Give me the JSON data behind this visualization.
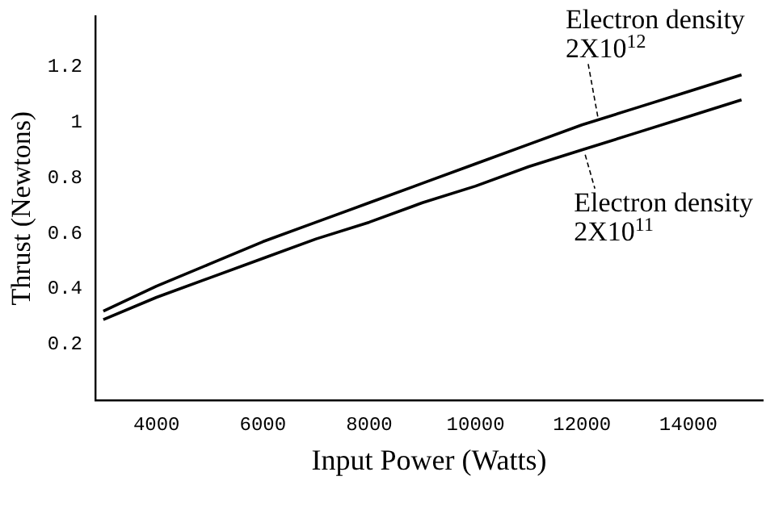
{
  "chart_data": {
    "type": "line",
    "xlabel": "Input Power (Watts)",
    "ylabel": "Thrust (Newtons)",
    "xlim": [
      2850,
      15400
    ],
    "xticks": [
      4000,
      6000,
      8000,
      10000,
      12000,
      14000
    ],
    "ylim": [
      0,
      1.38
    ],
    "yticks": [
      0.2,
      0.4,
      0.6,
      0.8,
      1,
      1.2
    ],
    "grid": false,
    "legend": false,
    "marker": "none",
    "line_style": "solid",
    "series": [
      {
        "color": "#000000",
        "x": [
          3000,
          4000,
          5000,
          6000,
          7000,
          8000,
          9000,
          10000,
          11000,
          12000,
          13000,
          14000,
          15000
        ],
        "values": [
          0.32,
          0.41,
          0.49,
          0.57,
          0.64,
          0.71,
          0.78,
          0.85,
          0.92,
          0.99,
          1.05,
          1.11,
          1.17
        ]
      },
      {
        "color": "#000000",
        "x": [
          3000,
          4000,
          5000,
          6000,
          7000,
          8000,
          9000,
          10000,
          11000,
          12000,
          13000,
          14000,
          15000
        ],
        "values": [
          0.29,
          0.37,
          0.44,
          0.51,
          0.58,
          0.64,
          0.71,
          0.77,
          0.84,
          0.9,
          0.96,
          1.02,
          1.08
        ]
      }
    ],
    "annotations": [
      {
        "text": "Electron density\n2X10$^{12}$",
        "x": 12300,
        "y": 1.0
      },
      {
        "text": "Electron density\n2X10$^{11}$",
        "x": 12000,
        "y": 0.9
      }
    ]
  }
}
